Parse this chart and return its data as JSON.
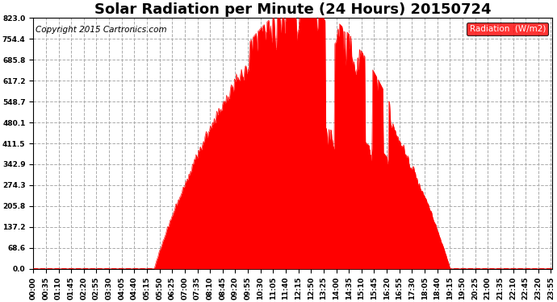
{
  "title": "Solar Radiation per Minute (24 Hours) 20150724",
  "copyright": "Copyright 2015 Cartronics.com",
  "legend_label": "Radiation  (W/m2)",
  "legend_color": "#ff0000",
  "legend_text_color": "#ffffff",
  "fill_color": "#ff0000",
  "line_color": "#ff0000",
  "background_color": "#ffffff",
  "grid_color": "#aaaaaa",
  "grid_style": "--",
  "yticks": [
    0.0,
    68.6,
    137.2,
    205.8,
    274.3,
    342.9,
    411.5,
    480.1,
    548.7,
    617.2,
    685.8,
    754.4,
    823.0
  ],
  "ymax": 823.0,
  "ymin": 0.0,
  "title_fontsize": 13,
  "copyright_fontsize": 7.5,
  "tick_fontsize": 6.5,
  "sunrise_min": 335,
  "sunset_min": 1155,
  "peak_min": 805
}
